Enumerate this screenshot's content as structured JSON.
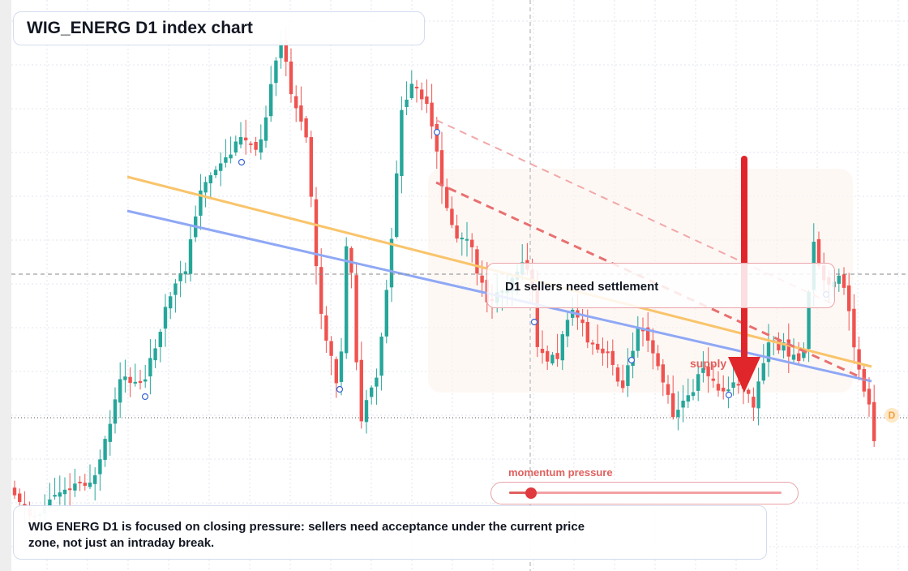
{
  "title": "WIG_ENERG D1 index chart",
  "callout": "D1 sellers need settlement",
  "supply_label": "supply",
  "price_label": "D",
  "momentum": {
    "label": "momentum pressure",
    "level": 0.08
  },
  "footer_text": "WIG ENERG D1 is focused on closing pressure: sellers need acceptance under the current price zone, not just an intraday break.",
  "colors": {
    "up": "#26a69a",
    "down": "#ef5350",
    "accent": "#e0393e",
    "orange_line": "#f9c46b",
    "blue_line": "#8fa8f5"
  },
  "chart_data": {
    "type": "candlestick",
    "candles_visible": 150,
    "trendlines": [
      {
        "name": "",
        "color": "orange",
        "style": "solid"
      },
      {
        "name": "",
        "color": "blue",
        "style": "solid"
      },
      {
        "name": "",
        "color": "red",
        "style": "dashed"
      },
      {
        "name": "",
        "color": "light-red",
        "style": "dashed"
      }
    ],
    "annotations": [
      "D1 sellers need settlement",
      "supply",
      "momentum pressure"
    ],
    "grid": true
  }
}
